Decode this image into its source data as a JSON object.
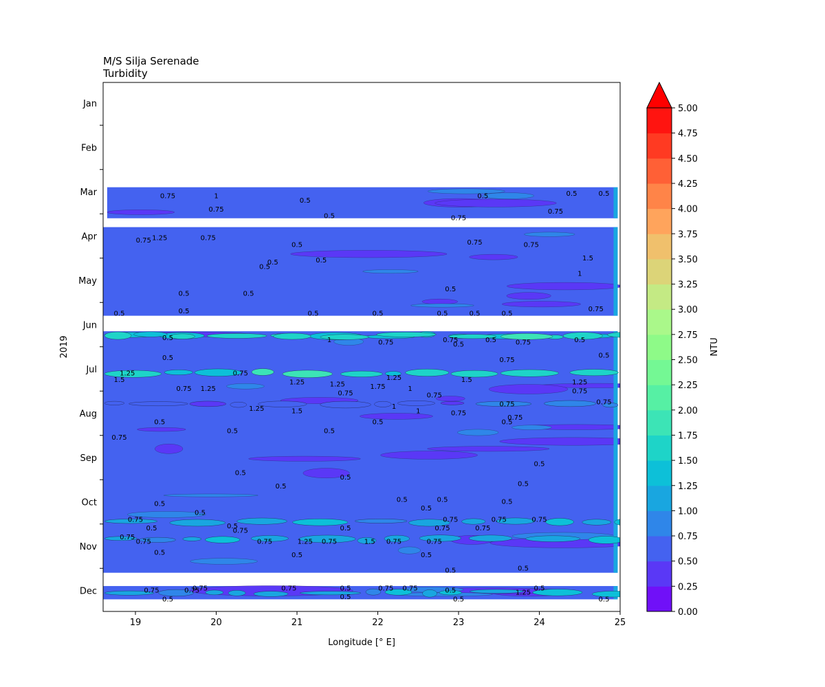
{
  "chart_data": {
    "type": "heatmap",
    "title": "M/S Silja Serenade",
    "subtitle": "Turbidity",
    "xlabel": "Longitude [° E]",
    "ylabel": "2019",
    "xlim": [
      18.6,
      25.0
    ],
    "x_ticks": [
      19,
      20,
      21,
      22,
      23,
      24,
      25
    ],
    "y_tick_labels": [
      "Jan",
      "Feb",
      "Mar",
      "Apr",
      "May",
      "Jun",
      "Jul",
      "Aug",
      "Sep",
      "Oct",
      "Nov",
      "Dec"
    ],
    "colorbar": {
      "label": "NTU",
      "levels": [
        "0.00",
        "0.25",
        "0.50",
        "0.75",
        "1.00",
        "1.25",
        "1.50",
        "1.75",
        "2.00",
        "2.25",
        "2.50",
        "2.75",
        "3.00",
        "3.25",
        "3.50",
        "3.75",
        "4.00",
        "4.25",
        "4.50",
        "4.75",
        "5.00"
      ],
      "colors": [
        "#7010f8",
        "#5a38f6",
        "#4462f0",
        "#2f86e9",
        "#19a6e0",
        "#0dc0d8",
        "#1ed4c8",
        "#3ce4b6",
        "#56f0a4",
        "#74f894",
        "#8efa88",
        "#aaf88a",
        "#c4ea84",
        "#dcd478",
        "#f0c06c",
        "#ffa45c",
        "#ff8448",
        "#ff6036",
        "#ff3a22",
        "#ff1410"
      ],
      "extend": "max",
      "extend_color": "#ff0000"
    },
    "data_bands": [
      {
        "from_month": 2.9,
        "to_month": 3.6,
        "base_ntu": 0.55
      },
      {
        "from_month": 3.8,
        "to_month": 5.8,
        "base_ntu": 0.5
      },
      {
        "from_month": 6.15,
        "to_month": 11.6,
        "base_ntu": 0.5
      },
      {
        "from_month": 11.9,
        "to_month": 12.2,
        "base_ntu": 0.6
      }
    ],
    "high_turbidity_streaks": [
      {
        "month": 6.25,
        "ntu": 1.25
      },
      {
        "month": 6.25,
        "ntu": 1.5
      },
      {
        "month": 7.1,
        "ntu": 1.5
      },
      {
        "month": 7.8,
        "ntu": 0.5
      },
      {
        "month": 10.45,
        "ntu": 1.0
      },
      {
        "month": 10.85,
        "ntu": 1.0
      },
      {
        "month": 12.05,
        "ntu": 1.0
      }
    ],
    "contour_labels": [
      {
        "text": "0.75",
        "lon": 19.4,
        "month": 3.1
      },
      {
        "text": "1",
        "lon": 20.0,
        "month": 3.1
      },
      {
        "text": "0.75",
        "lon": 20.0,
        "month": 3.4
      },
      {
        "text": "0.5",
        "lon": 21.1,
        "month": 3.2
      },
      {
        "text": "0.5",
        "lon": 21.4,
        "month": 3.55
      },
      {
        "text": "0.5",
        "lon": 23.3,
        "month": 3.1
      },
      {
        "text": "0.5",
        "lon": 24.4,
        "month": 3.05
      },
      {
        "text": "0.5",
        "lon": 24.8,
        "month": 3.05
      },
      {
        "text": "0.75",
        "lon": 24.2,
        "month": 3.45
      },
      {
        "text": "0.75",
        "lon": 23.0,
        "month": 3.6
      },
      {
        "text": "1.25",
        "lon": 19.3,
        "month": 4.05
      },
      {
        "text": "0.75",
        "lon": 19.1,
        "month": 4.1
      },
      {
        "text": "0.75",
        "lon": 19.9,
        "month": 4.05
      },
      {
        "text": "0.5",
        "lon": 21.0,
        "month": 4.2
      },
      {
        "text": "0.75",
        "lon": 23.2,
        "month": 4.15
      },
      {
        "text": "0.75",
        "lon": 23.9,
        "month": 4.2
      },
      {
        "text": "0.5",
        "lon": 20.6,
        "month": 4.7
      },
      {
        "text": "0.5",
        "lon": 20.7,
        "month": 4.6
      },
      {
        "text": "0.5",
        "lon": 21.3,
        "month": 4.55
      },
      {
        "text": "0.5",
        "lon": 19.6,
        "month": 5.3
      },
      {
        "text": "0.5",
        "lon": 20.4,
        "month": 5.3
      },
      {
        "text": "0.5",
        "lon": 22.9,
        "month": 5.2
      },
      {
        "text": "1.5",
        "lon": 24.6,
        "month": 4.5
      },
      {
        "text": "1",
        "lon": 24.5,
        "month": 4.85
      },
      {
        "text": "0.75",
        "lon": 24.7,
        "month": 5.65
      },
      {
        "text": "0.5",
        "lon": 18.8,
        "month": 5.75
      },
      {
        "text": "0.5",
        "lon": 19.6,
        "month": 5.7
      },
      {
        "text": "0.5",
        "lon": 21.2,
        "month": 5.75
      },
      {
        "text": "0.5",
        "lon": 22.0,
        "month": 5.75
      },
      {
        "text": "0.5",
        "lon": 22.8,
        "month": 5.75
      },
      {
        "text": "0.5",
        "lon": 23.2,
        "month": 5.75
      },
      {
        "text": "0.5",
        "lon": 23.6,
        "month": 5.75
      },
      {
        "text": "0.5",
        "lon": 19.4,
        "month": 6.3
      },
      {
        "text": "1",
        "lon": 21.4,
        "month": 6.35
      },
      {
        "text": "0.75",
        "lon": 22.1,
        "month": 6.4
      },
      {
        "text": "0.75",
        "lon": 22.9,
        "month": 6.35
      },
      {
        "text": "0.5",
        "lon": 23.0,
        "month": 6.45
      },
      {
        "text": "0.5",
        "lon": 23.4,
        "month": 6.35
      },
      {
        "text": "0.75",
        "lon": 23.8,
        "month": 6.4
      },
      {
        "text": "0.5",
        "lon": 24.5,
        "month": 6.35
      },
      {
        "text": "0.5",
        "lon": 24.8,
        "month": 6.7
      },
      {
        "text": "0.5",
        "lon": 19.4,
        "month": 6.75
      },
      {
        "text": "0.75",
        "lon": 23.6,
        "month": 6.8
      },
      {
        "text": "1.25",
        "lon": 18.9,
        "month": 7.1
      },
      {
        "text": "1.5",
        "lon": 18.8,
        "month": 7.25
      },
      {
        "text": "0.75",
        "lon": 20.3,
        "month": 7.1
      },
      {
        "text": "0.75",
        "lon": 19.6,
        "month": 7.45
      },
      {
        "text": "1.25",
        "lon": 19.9,
        "month": 7.45
      },
      {
        "text": "1.25",
        "lon": 21.0,
        "month": 7.3
      },
      {
        "text": "1.25",
        "lon": 21.5,
        "month": 7.35
      },
      {
        "text": "1.25",
        "lon": 22.2,
        "month": 7.2
      },
      {
        "text": "1.75",
        "lon": 22.0,
        "month": 7.4
      },
      {
        "text": "1",
        "lon": 22.4,
        "month": 7.45
      },
      {
        "text": "1.5",
        "lon": 23.1,
        "month": 7.25
      },
      {
        "text": "1.25",
        "lon": 24.5,
        "month": 7.3
      },
      {
        "text": "0.75",
        "lon": 24.5,
        "month": 7.5
      },
      {
        "text": "0.75",
        "lon": 22.7,
        "month": 7.6
      },
      {
        "text": "0.75",
        "lon": 21.6,
        "month": 7.55
      },
      {
        "text": "0.75",
        "lon": 23.6,
        "month": 7.8
      },
      {
        "text": "0.75",
        "lon": 24.8,
        "month": 7.75
      },
      {
        "text": "1.25",
        "lon": 20.5,
        "month": 7.9
      },
      {
        "text": "1.5",
        "lon": 21.0,
        "month": 7.95
      },
      {
        "text": "1",
        "lon": 22.2,
        "month": 7.85
      },
      {
        "text": "1",
        "lon": 22.5,
        "month": 7.95
      },
      {
        "text": "0.75",
        "lon": 23.0,
        "month": 8.0
      },
      {
        "text": "0.75",
        "lon": 23.7,
        "month": 8.1
      },
      {
        "text": "0.5",
        "lon": 19.3,
        "month": 8.2
      },
      {
        "text": "0.5",
        "lon": 22.0,
        "month": 8.2
      },
      {
        "text": "0.5",
        "lon": 21.4,
        "month": 8.4
      },
      {
        "text": "0.5",
        "lon": 23.6,
        "month": 8.2
      },
      {
        "text": "0.75",
        "lon": 18.8,
        "month": 8.55
      },
      {
        "text": "0.5",
        "lon": 20.2,
        "month": 8.4
      },
      {
        "text": "0.5",
        "lon": 24.0,
        "month": 9.15
      },
      {
        "text": "0.5",
        "lon": 20.3,
        "month": 9.35
      },
      {
        "text": "0.5",
        "lon": 21.6,
        "month": 9.45
      },
      {
        "text": "0.5",
        "lon": 23.8,
        "month": 9.6
      },
      {
        "text": "0.5",
        "lon": 20.8,
        "month": 9.65
      },
      {
        "text": "0.5",
        "lon": 22.3,
        "month": 9.95
      },
      {
        "text": "0.5",
        "lon": 22.8,
        "month": 9.95
      },
      {
        "text": "0.5",
        "lon": 23.6,
        "month": 10.0
      },
      {
        "text": "0.5",
        "lon": 19.3,
        "month": 10.05
      },
      {
        "text": "0.5",
        "lon": 19.8,
        "month": 10.25
      },
      {
        "text": "0.75",
        "lon": 19.0,
        "month": 10.4
      },
      {
        "text": "0.5",
        "lon": 22.6,
        "month": 10.15
      },
      {
        "text": "0.75",
        "lon": 22.9,
        "month": 10.4
      },
      {
        "text": "0.75",
        "lon": 23.5,
        "month": 10.4
      },
      {
        "text": "0.75",
        "lon": 24.0,
        "month": 10.4
      },
      {
        "text": "0.5",
        "lon": 20.2,
        "month": 10.55
      },
      {
        "text": "0.75",
        "lon": 20.3,
        "month": 10.65
      },
      {
        "text": "0.75",
        "lon": 22.8,
        "month": 10.6
      },
      {
        "text": "0.75",
        "lon": 23.3,
        "month": 10.6
      },
      {
        "text": "0.5",
        "lon": 21.6,
        "month": 10.6
      },
      {
        "text": "0.5",
        "lon": 19.2,
        "month": 10.6
      },
      {
        "text": "0.75",
        "lon": 18.9,
        "month": 10.8
      },
      {
        "text": "0.75",
        "lon": 19.1,
        "month": 10.9
      },
      {
        "text": "0.75",
        "lon": 20.6,
        "month": 10.9
      },
      {
        "text": "1.25",
        "lon": 21.1,
        "month": 10.9
      },
      {
        "text": "0.75",
        "lon": 21.4,
        "month": 10.9
      },
      {
        "text": "1.5",
        "lon": 21.9,
        "month": 10.9
      },
      {
        "text": "0.75",
        "lon": 22.2,
        "month": 10.9
      },
      {
        "text": "0.75",
        "lon": 22.7,
        "month": 10.9
      },
      {
        "text": "0.5",
        "lon": 19.3,
        "month": 11.15
      },
      {
        "text": "0.5",
        "lon": 21.0,
        "month": 11.2
      },
      {
        "text": "0.5",
        "lon": 22.6,
        "month": 11.2
      },
      {
        "text": "0.5",
        "lon": 23.8,
        "month": 11.5
      },
      {
        "text": "0.5",
        "lon": 22.9,
        "month": 11.55
      },
      {
        "text": "0.75",
        "lon": 19.2,
        "month": 12.0
      },
      {
        "text": "0.75",
        "lon": 19.7,
        "month": 12.0
      },
      {
        "text": "0.75",
        "lon": 19.8,
        "month": 11.95
      },
      {
        "text": "0.75",
        "lon": 20.9,
        "month": 11.95
      },
      {
        "text": "0.5",
        "lon": 21.6,
        "month": 11.95
      },
      {
        "text": "0.75",
        "lon": 22.1,
        "month": 11.95
      },
      {
        "text": "0.75",
        "lon": 22.4,
        "month": 11.95
      },
      {
        "text": "0.5",
        "lon": 22.9,
        "month": 12.0
      },
      {
        "text": "1.25",
        "lon": 23.8,
        "month": 12.05
      },
      {
        "text": "0.5",
        "lon": 24.0,
        "month": 11.95
      },
      {
        "text": "0.5",
        "lon": 21.6,
        "month": 12.15
      },
      {
        "text": "0.5",
        "lon": 23.0,
        "month": 12.2
      },
      {
        "text": "0.5",
        "lon": 24.8,
        "month": 12.2
      },
      {
        "text": "0.5",
        "lon": 19.4,
        "month": 12.2
      }
    ]
  }
}
